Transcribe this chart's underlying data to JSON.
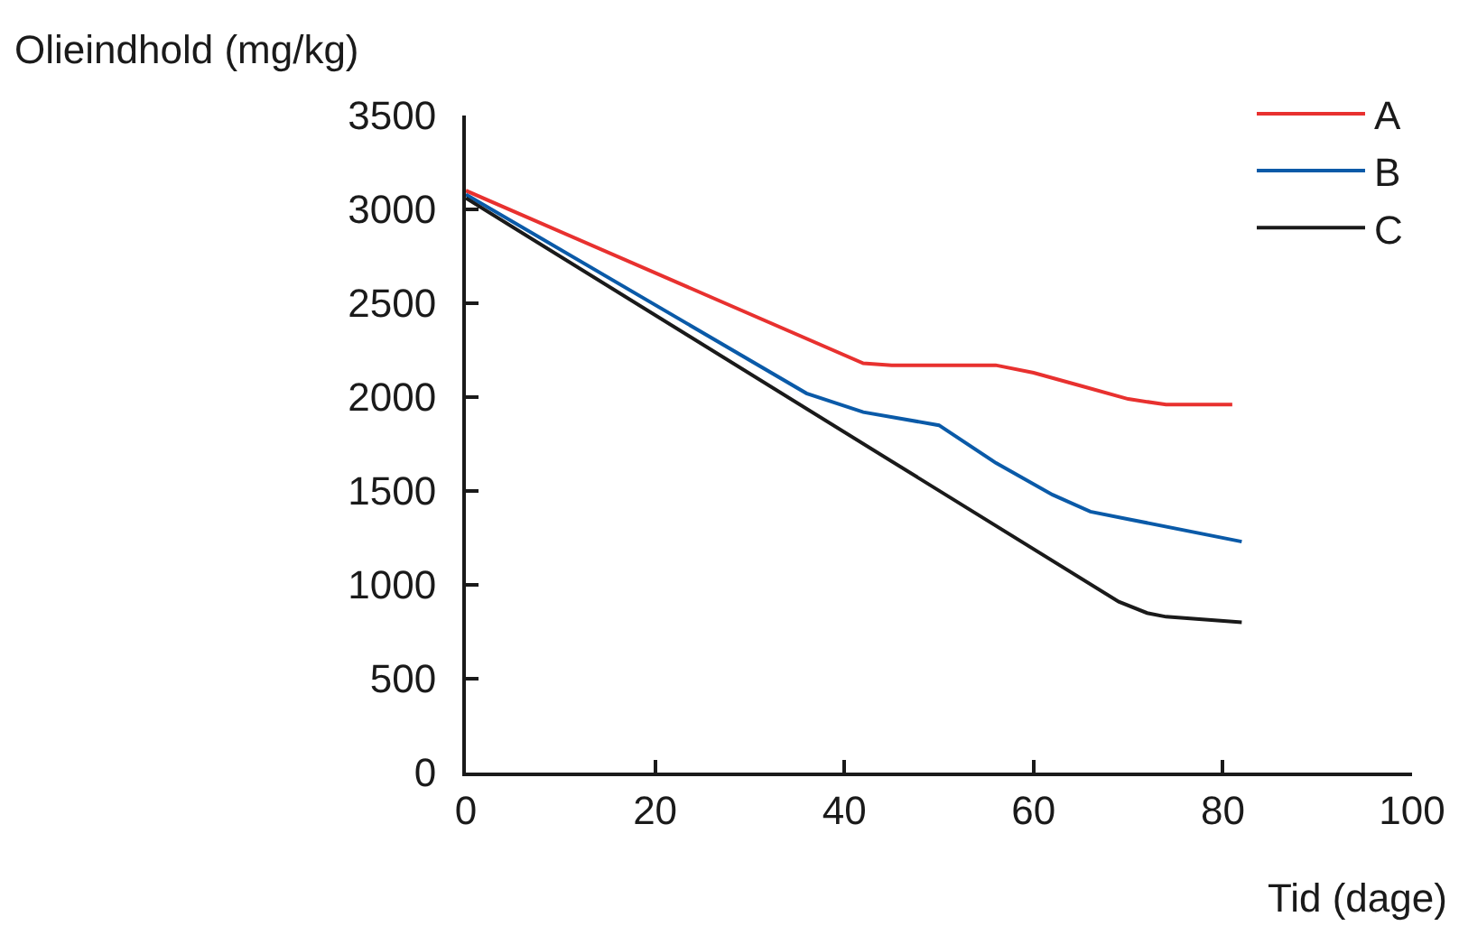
{
  "chart_data": {
    "type": "line",
    "xlabel": "Tid (dage)",
    "ylabel": "Olieindhold (mg/kg)",
    "xlim": [
      0,
      100
    ],
    "xticks": [
      0,
      20,
      40,
      60,
      80,
      100
    ],
    "ylim": [
      0,
      3500
    ],
    "yticks": [
      0,
      500,
      1000,
      1500,
      2000,
      2500,
      3000,
      3500
    ],
    "grid": false,
    "legend": "top right",
    "marker": "none",
    "line_style": "solid",
    "series": [
      {
        "name": "A",
        "color": "#e8312f",
        "x": [
          0,
          42,
          45,
          56,
          60,
          65,
          70,
          74,
          81
        ],
        "values": [
          3100,
          2180,
          2170,
          2170,
          2130,
          2060,
          1990,
          1960,
          1960
        ]
      },
      {
        "name": "B",
        "color": "#0a5aa8",
        "x": [
          0,
          36,
          42,
          50,
          56,
          62,
          66,
          70,
          82
        ],
        "values": [
          3080,
          2020,
          1920,
          1850,
          1650,
          1480,
          1390,
          1350,
          1230
        ]
      },
      {
        "name": "C",
        "color": "#1a1a1a",
        "x": [
          0,
          69,
          72,
          74,
          82
        ],
        "values": [
          3060,
          910,
          850,
          830,
          800
        ]
      }
    ]
  }
}
